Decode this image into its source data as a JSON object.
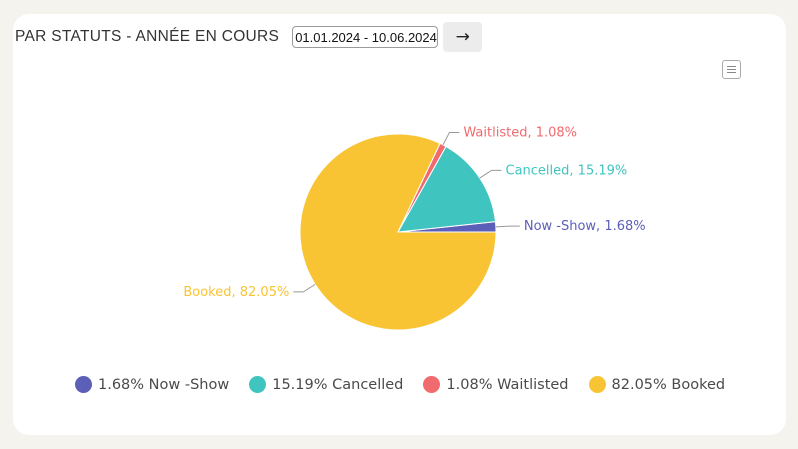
{
  "header": {
    "title": "PAR STATUTS - ANNÉE EN COURS",
    "date_range": "01.01.2024 - 10.06.2024",
    "go_icon": "arrow-right-icon",
    "menu_icon": "hamburger-menu-icon"
  },
  "chart_data": {
    "type": "pie",
    "title": "PAR STATUTS - ANNÉE EN COURS",
    "categories": [
      "Now -Show",
      "Cancelled",
      "Waitlisted",
      "Booked"
    ],
    "values": [
      1.68,
      15.19,
      1.08,
      82.05
    ],
    "unit": "%",
    "colors": [
      "#5b5fb8",
      "#40c4c0",
      "#f06a6e",
      "#f9c433"
    ],
    "slice_labels": [
      "Now -Show, 1.68%",
      "Cancelled, 15.19%",
      "Waitlisted, 1.08%",
      "Booked, 82.05%"
    ],
    "legend": {
      "placement": "bottom",
      "entries": [
        "1.68% Now -Show",
        "15.19% Cancelled",
        "1.08% Waitlisted",
        "82.05% Booked"
      ]
    }
  }
}
